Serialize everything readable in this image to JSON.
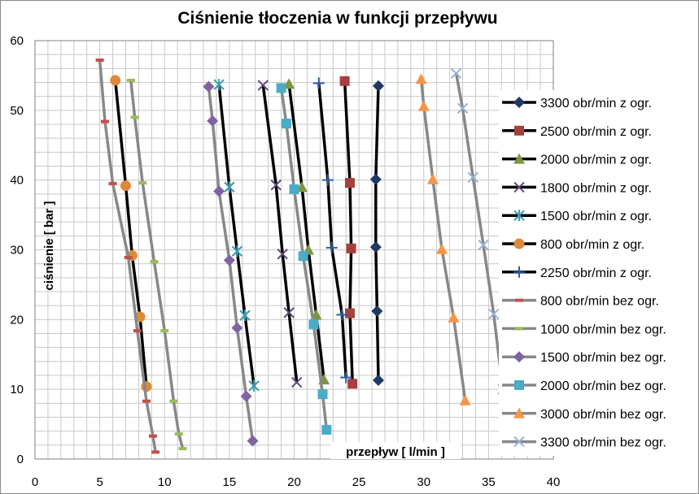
{
  "chart_data": {
    "type": "scatter",
    "title": "Ciśnienie tłoczenia w funkcji przepływu",
    "xlabel": "przepływ [ l/min ]",
    "ylabel": "ciśnienie [ bar ]",
    "xlim": [
      0,
      40
    ],
    "ylim": [
      0,
      60
    ],
    "x_ticks": [
      0,
      5,
      10,
      15,
      20,
      25,
      30,
      35,
      40
    ],
    "y_ticks": [
      0,
      10,
      20,
      30,
      40,
      50,
      60
    ],
    "grid": true,
    "legend_position": "right",
    "series": [
      {
        "name": "3300 obr/min z ogr.",
        "color": "#1F3864",
        "marker": "diamond",
        "line_color": "#000000",
        "x": [
          26.5,
          26.3,
          26.3,
          26.4,
          26.5
        ],
        "y": [
          53.5,
          40.1,
          30.4,
          21.2,
          11.3
        ]
      },
      {
        "name": "2500 obr/min z ogr.",
        "color": "#A5403D",
        "marker": "square",
        "line_color": "#000000",
        "x": [
          23.9,
          24.3,
          24.4,
          24.3,
          24.5
        ],
        "y": [
          54.2,
          39.6,
          30.2,
          20.9,
          10.8
        ]
      },
      {
        "name": "2000 obr/min z ogr.",
        "color": "#7F9640",
        "marker": "triangle",
        "line_color": "#000000",
        "x": [
          19.6,
          20.6,
          21.1,
          21.7,
          22.3
        ],
        "y": [
          53.8,
          39.0,
          30.0,
          20.7,
          11.4
        ]
      },
      {
        "name": "1800 obr/min z ogr.",
        "color": "#5F497A",
        "marker": "x",
        "line_color": "#000000",
        "x": [
          17.6,
          18.6,
          19.1,
          19.6,
          20.2
        ],
        "y": [
          53.6,
          39.3,
          29.4,
          21.0,
          11.0
        ]
      },
      {
        "name": "1500 obr/min z ogr.",
        "color": "#3C9BB0",
        "marker": "star",
        "line_color": "#000000",
        "x": [
          14.2,
          15.0,
          15.6,
          16.2,
          16.9
        ],
        "y": [
          53.7,
          39.0,
          29.8,
          20.6,
          10.5
        ]
      },
      {
        "name": "800 obr/min z ogr.",
        "color": "#DD8A3A",
        "marker": "circle",
        "line_color": "#000000",
        "x": [
          6.2,
          7.0,
          7.5,
          8.1,
          8.6
        ],
        "y": [
          54.3,
          39.2,
          29.2,
          20.4,
          10.4
        ]
      },
      {
        "name": "2250 obr/min z ogr.",
        "color": "#2E5BA8",
        "marker": "plus",
        "line_color": "#000000",
        "x": [
          21.9,
          22.6,
          22.9,
          23.7,
          24.0
        ],
        "y": [
          53.9,
          40.0,
          30.3,
          20.7,
          11.7
        ]
      },
      {
        "name": "800 obr/min bez ogr.",
        "color": "#C0504D",
        "marker": "dash",
        "line_color": "#888888",
        "x": [
          5.0,
          5.4,
          6.0,
          7.2,
          7.9,
          8.6,
          9.1,
          9.3
        ],
        "y": [
          57.2,
          48.4,
          39.5,
          28.9,
          18.4,
          8.3,
          3.3,
          1.0
        ]
      },
      {
        "name": "1000 obr/min bez ogr.",
        "color": "#9BBB59",
        "marker": "dash",
        "line_color": "#888888",
        "x": [
          7.4,
          7.7,
          8.3,
          9.2,
          10.0,
          10.7,
          11.1,
          11.4
        ],
        "y": [
          54.3,
          49.0,
          39.6,
          28.3,
          18.4,
          8.3,
          3.6,
          1.5
        ]
      },
      {
        "name": "1500 obr/min bez ogr.",
        "color": "#8064A2",
        "marker": "diamond",
        "line_color": "#888888",
        "x": [
          13.4,
          13.7,
          14.2,
          15.0,
          15.6,
          16.3,
          16.8
        ],
        "y": [
          53.4,
          48.5,
          38.4,
          28.5,
          18.8,
          9.0,
          2.6
        ]
      },
      {
        "name": "2000 obr/min bez ogr.",
        "color": "#4BACC6",
        "marker": "square",
        "line_color": "#888888",
        "x": [
          19.0,
          19.4,
          20.0,
          20.7,
          21.5,
          22.2,
          22.5
        ],
        "y": [
          53.2,
          48.1,
          38.7,
          29.1,
          19.3,
          9.3,
          4.2
        ]
      },
      {
        "name": "3000 obr/min bez ogr.",
        "color": "#F79646",
        "marker": "triangle",
        "line_color": "#888888",
        "x": [
          29.8,
          30.0,
          30.7,
          31.4,
          32.3,
          33.2
        ],
        "y": [
          54.5,
          50.6,
          40.1,
          30.1,
          20.3,
          8.4
        ]
      },
      {
        "name": "3300 obr/min bez ogr.",
        "color": "#95B3D7",
        "marker": "x",
        "line_color": "#888888",
        "x": [
          32.5,
          33.0,
          33.8,
          34.6,
          35.4,
          36.1
        ],
        "y": [
          55.3,
          50.3,
          40.4,
          30.7,
          20.8,
          10.0
        ]
      }
    ]
  }
}
